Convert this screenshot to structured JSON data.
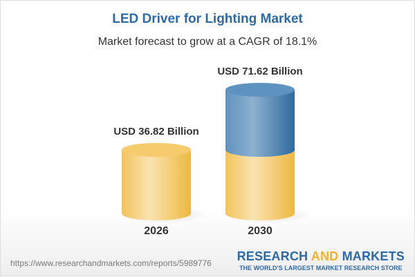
{
  "title": "LED Driver for Lighting Market",
  "subtitle": "Market forecast to grow at a CAGR of 18.1%",
  "footer": {
    "url": "https://www.researchandmarkets.com/reports/5989776",
    "logo_word1": "RESEARCH",
    "logo_word2": "AND",
    "logo_word3": "MARKETS",
    "logo_tagline": "THE WORLD'S LARGEST MARKET RESEARCH STORE"
  },
  "colors": {
    "base": "#f2c04f",
    "growth": "#4a80b0",
    "title": "#2b6aa6"
  },
  "chart_data": {
    "type": "bar",
    "style": "3d-cylinder",
    "title": "LED Driver for Lighting Market",
    "subtitle": "Market forecast to grow at a CAGR of 18.1%",
    "categories": [
      "2026",
      "2030"
    ],
    "values": [
      36.82,
      71.62
    ],
    "data_labels": [
      "USD 36.82 Billion",
      "USD 71.62 Billion"
    ],
    "unit": "USD Billion",
    "grid": false,
    "legend": "none"
  }
}
